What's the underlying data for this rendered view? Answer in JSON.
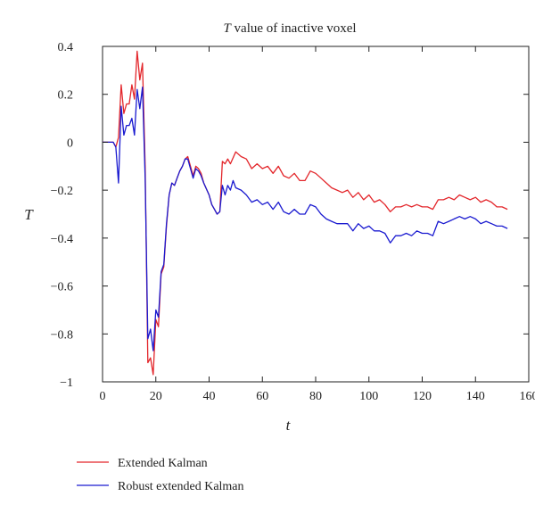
{
  "chart_data": {
    "type": "line",
    "title": "value of inactive voxel",
    "title_symbol": "T",
    "xlabel": "t",
    "ylabel": "T",
    "xlim": [
      0,
      160
    ],
    "ylim": [
      -1,
      0.4
    ],
    "xticks": [
      0,
      20,
      40,
      60,
      80,
      100,
      120,
      140,
      160
    ],
    "yticks": [
      -1,
      -0.8,
      -0.6,
      -0.4,
      -0.2,
      0,
      0.2,
      0.4
    ],
    "x_tick_labels": [
      "0",
      "20",
      "40",
      "60",
      "80",
      "100",
      "120",
      "140",
      "160"
    ],
    "y_tick_labels": [
      "−1",
      "−0.8",
      "−0.6",
      "−0.4",
      "−0.2",
      "0",
      "0.2",
      "0.4"
    ],
    "grid": false,
    "legend_position": "bottom-left, below plot",
    "series": [
      {
        "name": "Extended Kalman",
        "color": "#e3262b",
        "points": [
          [
            0,
            0
          ],
          [
            4,
            0
          ],
          [
            5,
            -0.02
          ],
          [
            6,
            0.02
          ],
          [
            7,
            0.24
          ],
          [
            8,
            0.12
          ],
          [
            9,
            0.16
          ],
          [
            10,
            0.16
          ],
          [
            11,
            0.24
          ],
          [
            12,
            0.18
          ],
          [
            13,
            0.38
          ],
          [
            14,
            0.26
          ],
          [
            15,
            0.33
          ],
          [
            16,
            -0.1
          ],
          [
            17,
            -0.92
          ],
          [
            18,
            -0.9
          ],
          [
            19,
            -0.97
          ],
          [
            20,
            -0.74
          ],
          [
            21,
            -0.77
          ],
          [
            22,
            -0.55
          ],
          [
            23,
            -0.52
          ],
          [
            24,
            -0.35
          ],
          [
            25,
            -0.22
          ],
          [
            26,
            -0.17
          ],
          [
            27,
            -0.18
          ],
          [
            28,
            -0.15
          ],
          [
            29,
            -0.12
          ],
          [
            30,
            -0.1
          ],
          [
            31,
            -0.07
          ],
          [
            32,
            -0.06
          ],
          [
            33,
            -0.1
          ],
          [
            34,
            -0.14
          ],
          [
            35,
            -0.1
          ],
          [
            36,
            -0.11
          ],
          [
            37,
            -0.13
          ],
          [
            38,
            -0.17
          ],
          [
            40,
            -0.22
          ],
          [
            41,
            -0.26
          ],
          [
            42,
            -0.28
          ],
          [
            43,
            -0.3
          ],
          [
            44,
            -0.29
          ],
          [
            45,
            -0.08
          ],
          [
            46,
            -0.09
          ],
          [
            47,
            -0.07
          ],
          [
            48,
            -0.09
          ],
          [
            50,
            -0.04
          ],
          [
            52,
            -0.06
          ],
          [
            54,
            -0.07
          ],
          [
            56,
            -0.11
          ],
          [
            58,
            -0.09
          ],
          [
            60,
            -0.11
          ],
          [
            62,
            -0.1
          ],
          [
            64,
            -0.13
          ],
          [
            66,
            -0.1
          ],
          [
            68,
            -0.14
          ],
          [
            70,
            -0.15
          ],
          [
            72,
            -0.13
          ],
          [
            74,
            -0.16
          ],
          [
            76,
            -0.16
          ],
          [
            78,
            -0.12
          ],
          [
            80,
            -0.13
          ],
          [
            82,
            -0.15
          ],
          [
            84,
            -0.17
          ],
          [
            86,
            -0.19
          ],
          [
            88,
            -0.2
          ],
          [
            90,
            -0.21
          ],
          [
            92,
            -0.2
          ],
          [
            94,
            -0.23
          ],
          [
            96,
            -0.21
          ],
          [
            98,
            -0.24
          ],
          [
            100,
            -0.22
          ],
          [
            102,
            -0.25
          ],
          [
            104,
            -0.24
          ],
          [
            106,
            -0.26
          ],
          [
            108,
            -0.29
          ],
          [
            110,
            -0.27
          ],
          [
            112,
            -0.27
          ],
          [
            114,
            -0.26
          ],
          [
            116,
            -0.27
          ],
          [
            118,
            -0.26
          ],
          [
            120,
            -0.27
          ],
          [
            122,
            -0.27
          ],
          [
            124,
            -0.28
          ],
          [
            126,
            -0.24
          ],
          [
            128,
            -0.24
          ],
          [
            130,
            -0.23
          ],
          [
            132,
            -0.24
          ],
          [
            134,
            -0.22
          ],
          [
            136,
            -0.23
          ],
          [
            138,
            -0.24
          ],
          [
            140,
            -0.23
          ],
          [
            142,
            -0.25
          ],
          [
            144,
            -0.24
          ],
          [
            146,
            -0.25
          ],
          [
            148,
            -0.27
          ],
          [
            150,
            -0.27
          ],
          [
            152,
            -0.28
          ]
        ]
      },
      {
        "name": "Robust extended Kalman",
        "color": "#1a1ad0",
        "points": [
          [
            0,
            0
          ],
          [
            4,
            0
          ],
          [
            5,
            -0.02
          ],
          [
            6,
            -0.17
          ],
          [
            7,
            0.15
          ],
          [
            8,
            0.03
          ],
          [
            9,
            0.07
          ],
          [
            10,
            0.07
          ],
          [
            11,
            0.1
          ],
          [
            12,
            0.03
          ],
          [
            13,
            0.22
          ],
          [
            14,
            0.14
          ],
          [
            15,
            0.23
          ],
          [
            16,
            -0.15
          ],
          [
            17,
            -0.82
          ],
          [
            18,
            -0.78
          ],
          [
            19,
            -0.87
          ],
          [
            20,
            -0.7
          ],
          [
            21,
            -0.73
          ],
          [
            22,
            -0.54
          ],
          [
            23,
            -0.51
          ],
          [
            24,
            -0.34
          ],
          [
            25,
            -0.22
          ],
          [
            26,
            -0.17
          ],
          [
            27,
            -0.18
          ],
          [
            28,
            -0.15
          ],
          [
            29,
            -0.12
          ],
          [
            30,
            -0.1
          ],
          [
            31,
            -0.07
          ],
          [
            32,
            -0.07
          ],
          [
            33,
            -0.11
          ],
          [
            34,
            -0.15
          ],
          [
            35,
            -0.11
          ],
          [
            36,
            -0.12
          ],
          [
            37,
            -0.14
          ],
          [
            38,
            -0.17
          ],
          [
            40,
            -0.22
          ],
          [
            41,
            -0.26
          ],
          [
            42,
            -0.28
          ],
          [
            43,
            -0.3
          ],
          [
            44,
            -0.29
          ],
          [
            45,
            -0.18
          ],
          [
            46,
            -0.22
          ],
          [
            47,
            -0.18
          ],
          [
            48,
            -0.2
          ],
          [
            49,
            -0.16
          ],
          [
            50,
            -0.19
          ],
          [
            52,
            -0.2
          ],
          [
            54,
            -0.22
          ],
          [
            56,
            -0.25
          ],
          [
            58,
            -0.24
          ],
          [
            60,
            -0.26
          ],
          [
            62,
            -0.25
          ],
          [
            64,
            -0.28
          ],
          [
            66,
            -0.25
          ],
          [
            68,
            -0.29
          ],
          [
            70,
            -0.3
          ],
          [
            72,
            -0.28
          ],
          [
            74,
            -0.3
          ],
          [
            76,
            -0.3
          ],
          [
            78,
            -0.26
          ],
          [
            80,
            -0.27
          ],
          [
            82,
            -0.3
          ],
          [
            84,
            -0.32
          ],
          [
            86,
            -0.33
          ],
          [
            88,
            -0.34
          ],
          [
            90,
            -0.34
          ],
          [
            92,
            -0.34
          ],
          [
            94,
            -0.37
          ],
          [
            96,
            -0.34
          ],
          [
            98,
            -0.36
          ],
          [
            100,
            -0.35
          ],
          [
            102,
            -0.37
          ],
          [
            104,
            -0.37
          ],
          [
            106,
            -0.38
          ],
          [
            108,
            -0.42
          ],
          [
            110,
            -0.39
          ],
          [
            112,
            -0.39
          ],
          [
            114,
            -0.38
          ],
          [
            116,
            -0.39
          ],
          [
            118,
            -0.37
          ],
          [
            120,
            -0.38
          ],
          [
            122,
            -0.38
          ],
          [
            124,
            -0.39
          ],
          [
            126,
            -0.33
          ],
          [
            128,
            -0.34
          ],
          [
            130,
            -0.33
          ],
          [
            132,
            -0.32
          ],
          [
            134,
            -0.31
          ],
          [
            136,
            -0.32
          ],
          [
            138,
            -0.31
          ],
          [
            140,
            -0.32
          ],
          [
            142,
            -0.34
          ],
          [
            144,
            -0.33
          ],
          [
            146,
            -0.34
          ],
          [
            148,
            -0.35
          ],
          [
            150,
            -0.35
          ],
          [
            152,
            -0.36
          ]
        ]
      }
    ]
  }
}
